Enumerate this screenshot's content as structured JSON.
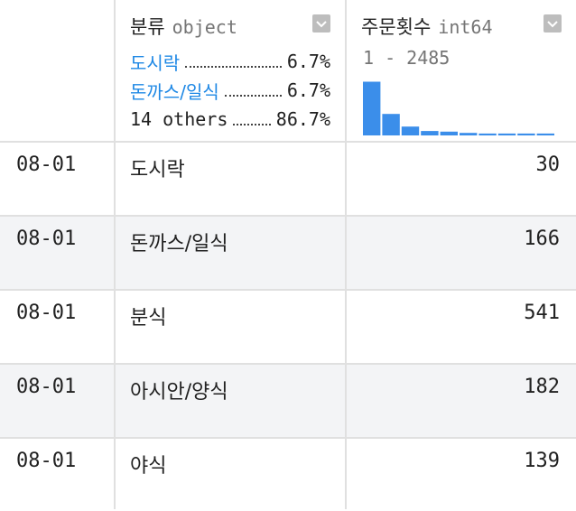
{
  "columns": {
    "category": {
      "name": "분류",
      "dtype": "object",
      "top_values": [
        {
          "label": "도시락",
          "pct": "6.7%"
        },
        {
          "label": "돈까스/일식",
          "pct": "6.7%"
        }
      ],
      "others": {
        "label": "14 others",
        "pct": "86.7%"
      }
    },
    "orders": {
      "name": "주문횟수",
      "dtype": "int64",
      "range": "1 - 2485",
      "histogram": [
        0.85,
        0.34,
        0.14,
        0.07,
        0.06,
        0.04,
        0.03,
        0.03,
        0.03,
        0.03
      ],
      "bar_color": "#3b8eea"
    }
  },
  "rows": [
    {
      "index": "08-01",
      "category": "도시락",
      "orders": "30"
    },
    {
      "index": "08-01",
      "category": "돈까스/일식",
      "orders": "166"
    },
    {
      "index": "08-01",
      "category": "분식",
      "orders": "541"
    },
    {
      "index": "08-01",
      "category": "아시안/양식",
      "orders": "182"
    },
    {
      "index": "08-01",
      "category": "야식",
      "orders": "139"
    }
  ]
}
